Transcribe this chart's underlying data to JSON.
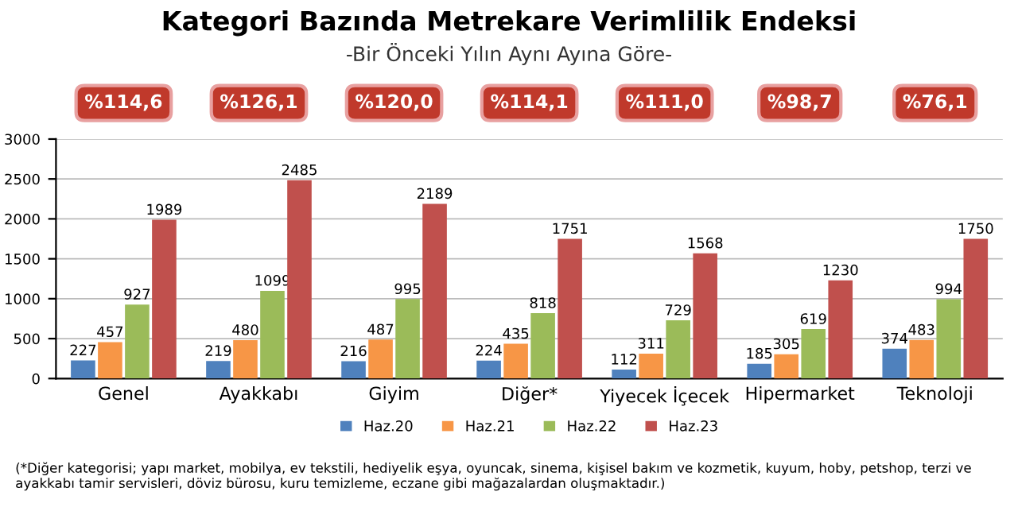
{
  "chart_data": {
    "type": "bar",
    "title": "Kategori Bazında Metrekare Verimlilik Endeksi",
    "subtitle": "-Bir Önceki Yılın Aynı Ayına Göre-",
    "categories": [
      "Genel",
      "Ayakkabı",
      "Giyim",
      "Diğer*",
      "Yiyecek İçecek",
      "Hipermarket",
      "Teknoloji"
    ],
    "series": [
      {
        "name": "Haz.20",
        "color": "#4f81bd",
        "values": [
          227,
          219,
          216,
          224,
          112,
          185,
          374
        ]
      },
      {
        "name": "Haz.21",
        "color": "#f79646",
        "values": [
          457,
          480,
          487,
          435,
          311,
          305,
          483
        ]
      },
      {
        "name": "Haz.22",
        "color": "#9bbb59",
        "values": [
          927,
          1099,
          995,
          818,
          729,
          619,
          994
        ]
      },
      {
        "name": "Haz.23",
        "color": "#c0504d",
        "values": [
          1989,
          2485,
          2189,
          1751,
          1568,
          1230,
          1750
        ]
      }
    ],
    "ylim": [
      0,
      3000
    ],
    "yticks": [
      0,
      500,
      1000,
      1500,
      2000,
      2500,
      3000
    ],
    "grid": "y",
    "legend": "bottom",
    "data_labels": true,
    "annotations": [
      "%114,6",
      "%126,1",
      "%120,0",
      "%114,1",
      "%111,0",
      "%98,7",
      "%76,1",
      "(*Diğer kategorisi; yapı market, mobilya, ev tekstili, hediyelik eşya, oyuncak, sinema, kişisel bakım ve kozmetik, kuyum, hoby, petshop, terzi ve ayakkabı tamir servisleri, döviz bürosu, kuru temizleme, eczane gibi mağazalardan oluşmaktadır.)"
    ]
  }
}
